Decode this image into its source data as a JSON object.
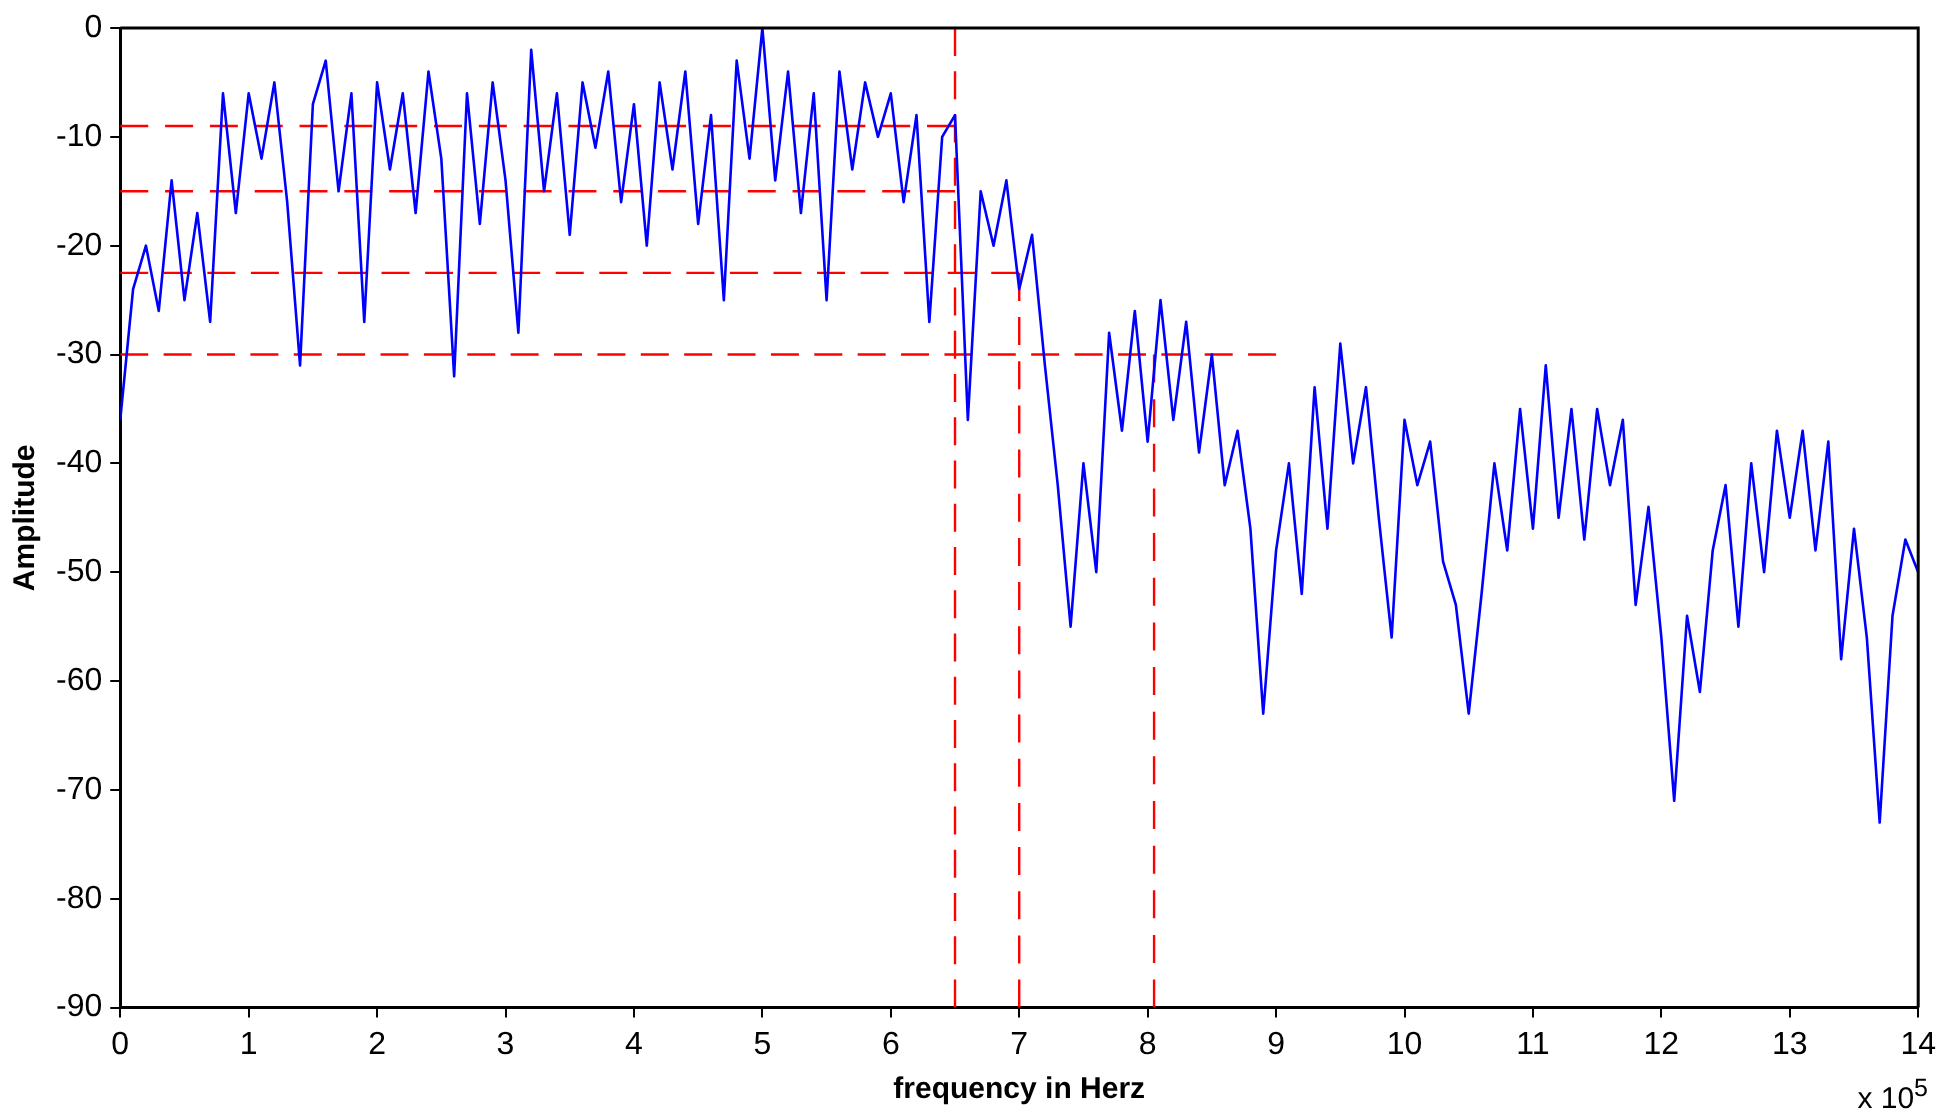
{
  "chart_data": {
    "type": "line",
    "xlabel": "frequency in Herz",
    "ylabel": "Amplitude",
    "xlim": [
      0,
      14
    ],
    "xticks": [
      0,
      1,
      2,
      3,
      4,
      5,
      6,
      7,
      8,
      9,
      10,
      11,
      12,
      13,
      14
    ],
    "ylim": [
      -90,
      0
    ],
    "yticks": [
      -90,
      -80,
      -70,
      -60,
      -50,
      -40,
      -30,
      -20,
      -10,
      0
    ],
    "grid": false,
    "marker": "none",
    "annotations": [
      "x 10$^{5}$"
    ],
    "series": [
      {
        "color": "#0000ff",
        "line_style": "solid",
        "x": [
          0,
          0.1,
          0.2,
          0.3,
          0.4,
          0.5,
          0.6,
          0.7,
          0.8,
          0.9,
          1,
          1.1,
          1.2,
          1.3,
          1.4,
          1.5,
          1.6,
          1.7,
          1.8,
          1.9,
          2,
          2.1,
          2.2,
          2.3,
          2.4,
          2.5,
          2.6,
          2.7,
          2.8,
          2.9,
          3,
          3.1,
          3.2,
          3.3,
          3.4,
          3.5,
          3.6,
          3.7,
          3.8,
          3.9,
          4,
          4.1,
          4.2,
          4.3,
          4.4,
          4.5,
          4.6,
          4.7,
          4.8,
          4.9,
          5,
          5.1,
          5.2,
          5.3,
          5.4,
          5.5,
          5.6,
          5.7,
          5.8,
          5.9,
          6,
          6.1,
          6.2,
          6.3,
          6.4,
          6.5,
          6.6,
          6.7,
          6.8,
          6.9,
          7,
          7.1,
          7.2,
          7.3,
          7.4,
          7.5,
          7.6,
          7.7,
          7.8,
          7.9,
          8,
          8.1,
          8.2,
          8.3,
          8.4,
          8.5,
          8.6,
          8.7,
          8.8,
          8.9,
          9,
          9.1,
          9.2,
          9.3,
          9.4,
          9.5,
          9.6,
          9.7,
          9.8,
          9.9,
          10,
          10.1,
          10.2,
          10.3,
          10.4,
          10.5,
          10.6,
          10.7,
          10.8,
          10.9,
          11,
          11.1,
          11.2,
          11.3,
          11.4,
          11.5,
          11.6,
          11.7,
          11.8,
          11.9,
          12,
          12.1,
          12.2,
          12.3,
          12.4,
          12.5,
          12.6,
          12.7,
          12.8,
          12.9,
          13,
          13.1,
          13.2,
          13.3,
          13.4,
          13.5,
          13.6,
          13.7,
          13.8,
          13.9,
          14
        ],
        "values": [
          -36,
          -24,
          -20,
          -26,
          -14,
          -25,
          -17,
          -27,
          -6,
          -17,
          -6,
          -12,
          -5,
          -16,
          -31,
          -7,
          -3,
          -15,
          -6,
          -27,
          -5,
          -13,
          -6,
          -17,
          -4,
          -12,
          -32,
          -6,
          -18,
          -5,
          -14,
          -28,
          -2,
          -15,
          -6,
          -19,
          -5,
          -11,
          -4,
          -16,
          -7,
          -20,
          -5,
          -13,
          -4,
          -18,
          -8,
          -25,
          -3,
          -12,
          0,
          -14,
          -4,
          -17,
          -6,
          -25,
          -4,
          -13,
          -5,
          -10,
          -6,
          -16,
          -8,
          -27,
          -10,
          -8,
          -36,
          -15,
          -20,
          -14,
          -24,
          -19,
          -31,
          -42,
          -55,
          -40,
          -50,
          -28,
          -37,
          -26,
          -38,
          -25,
          -36,
          -27,
          -39,
          -30,
          -42,
          -37,
          -46,
          -63,
          -48,
          -40,
          -52,
          -33,
          -46,
          -29,
          -40,
          -33,
          -45,
          -56,
          -36,
          -42,
          -38,
          -49,
          -53,
          -63,
          -52,
          -40,
          -48,
          -35,
          -46,
          -31,
          -45,
          -35,
          -47,
          -35,
          -42,
          -36,
          -53,
          -44,
          -56,
          -71,
          -54,
          -61,
          -48,
          -42,
          -55,
          -40,
          -50,
          -37,
          -45,
          -37,
          -48,
          -38,
          -58,
          -46,
          -56,
          -73,
          -54,
          -47,
          -50
        ]
      },
      {
        "color": "#ff0000",
        "line_style": "dashed",
        "x": [
          0,
          6.5
        ],
        "values": [
          -9,
          -9
        ]
      },
      {
        "color": "#ff0000",
        "line_style": "dashed",
        "x": [
          0,
          6.5
        ],
        "values": [
          -15,
          -15
        ]
      },
      {
        "color": "#ff0000",
        "line_style": "dashed",
        "x": [
          0,
          7
        ],
        "values": [
          -22.5,
          -22.5
        ]
      },
      {
        "color": "#ff0000",
        "line_style": "dashed",
        "x": [
          0,
          9
        ],
        "values": [
          -30,
          -30
        ]
      },
      {
        "color": "#ff0000",
        "line_style": "dashed",
        "x": [
          6.5,
          6.5
        ],
        "values": [
          -90,
          0
        ]
      },
      {
        "color": "#ff0000",
        "line_style": "dashed",
        "x": [
          7,
          7
        ],
        "values": [
          -90,
          -22.5
        ]
      },
      {
        "color": "#ff0000",
        "line_style": "dashed",
        "x": [
          8.05,
          8.05
        ],
        "values": [
          -90,
          -30
        ]
      }
    ]
  }
}
